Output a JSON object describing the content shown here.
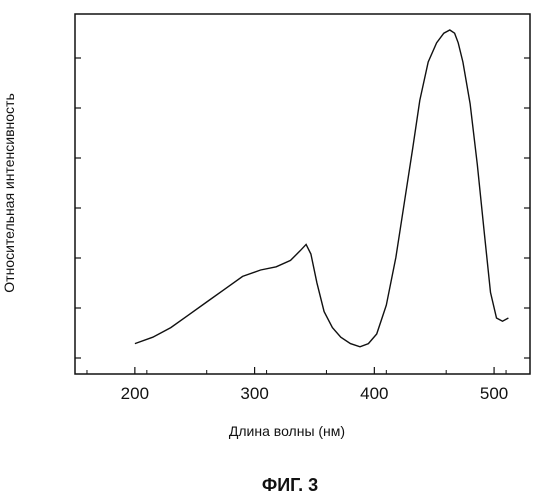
{
  "figure_caption": "ФИГ. 3",
  "chart_data": {
    "type": "line",
    "title": "",
    "xlabel": "Длина волны (нм)",
    "ylabel": "Относительная интенсивность",
    "xlim": [
      150,
      530
    ],
    "ylim": [
      0,
      1
    ],
    "xticks": [
      200,
      300,
      400,
      500
    ],
    "y_tick_labels_shown": false,
    "grid": false,
    "legend": "none",
    "series": [
      {
        "color": "#111111",
        "x": [
          200,
          215,
          230,
          245,
          260,
          275,
          290,
          305,
          318,
          330,
          338,
          343,
          347,
          352,
          358,
          365,
          372,
          380,
          388,
          395,
          402,
          410,
          418,
          425,
          432,
          438,
          445,
          452,
          458,
          463,
          467,
          470,
          474,
          480,
          486,
          492,
          497,
          502,
          507,
          512
        ],
        "y": [
          0.02,
          0.04,
          0.07,
          0.11,
          0.15,
          0.19,
          0.23,
          0.25,
          0.26,
          0.28,
          0.31,
          0.33,
          0.3,
          0.21,
          0.12,
          0.07,
          0.04,
          0.02,
          0.01,
          0.02,
          0.05,
          0.14,
          0.29,
          0.46,
          0.63,
          0.78,
          0.9,
          0.96,
          0.99,
          1.0,
          0.99,
          0.96,
          0.9,
          0.77,
          0.58,
          0.36,
          0.18,
          0.1,
          0.09,
          0.1
        ]
      }
    ]
  }
}
